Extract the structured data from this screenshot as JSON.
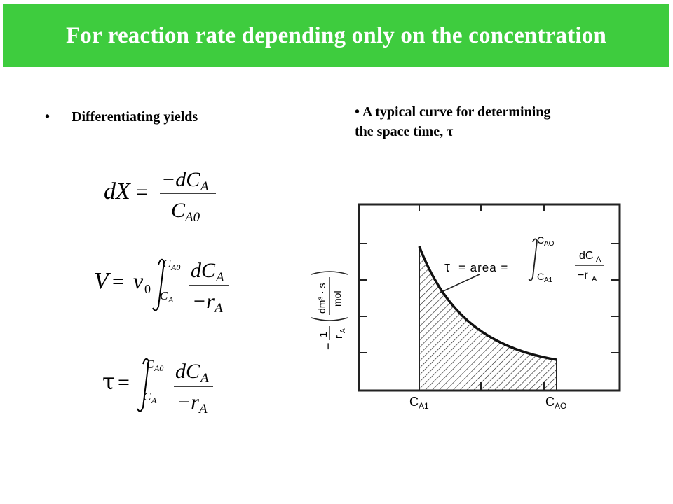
{
  "slide": {
    "title": "For reaction rate depending only on the concentration",
    "bullet_left": "Differentiating yields",
    "bullet_right_line1": "A typical curve for determining",
    "bullet_right_line2": "the space time, τ",
    "bullet_marker": "•"
  },
  "equations": {
    "eq1": {
      "lhs": "dX",
      "eq": "=",
      "numerator": "−dC",
      "num_sub": "A",
      "denominator": "C",
      "den_sub": "A0"
    },
    "eq2": {
      "lhs": "V",
      "eq": "=",
      "coef": "v",
      "coef_sub": "0",
      "int_upper": "C",
      "int_upper_sub": "A0",
      "int_lower": "C",
      "int_lower_sub": "A",
      "numerator": "dC",
      "num_sub": "A",
      "denominator": "−r",
      "den_sub": "A"
    },
    "eq3": {
      "lhs": "τ",
      "eq": "=",
      "int_upper": "C",
      "int_upper_sub": "A0",
      "int_lower": "C",
      "int_lower_sub": "A",
      "numerator": "dC",
      "num_sub": "A",
      "denominator": "−r",
      "den_sub": "A"
    }
  },
  "figure": {
    "y_axis": {
      "prefix": "−",
      "numerator": "1",
      "denominator": "r",
      "den_sub": "A",
      "units_num": "dm³ · s",
      "units_den": "mol"
    },
    "x_labels": {
      "left": "C",
      "left_sub": "A1",
      "right": "C",
      "right_sub": "AO"
    },
    "annotation": {
      "tau": "τ",
      "text": "= area =",
      "int_upper": "C",
      "int_upper_sub": "AO",
      "int_lower": "C",
      "int_lower_sub": "A1",
      "numerator": "dC",
      "num_sub": "A",
      "denominator": "−r",
      "den_sub": "A"
    },
    "colors": {
      "hatch": "#222222",
      "frame": "#222222",
      "curve": "#111111"
    }
  }
}
